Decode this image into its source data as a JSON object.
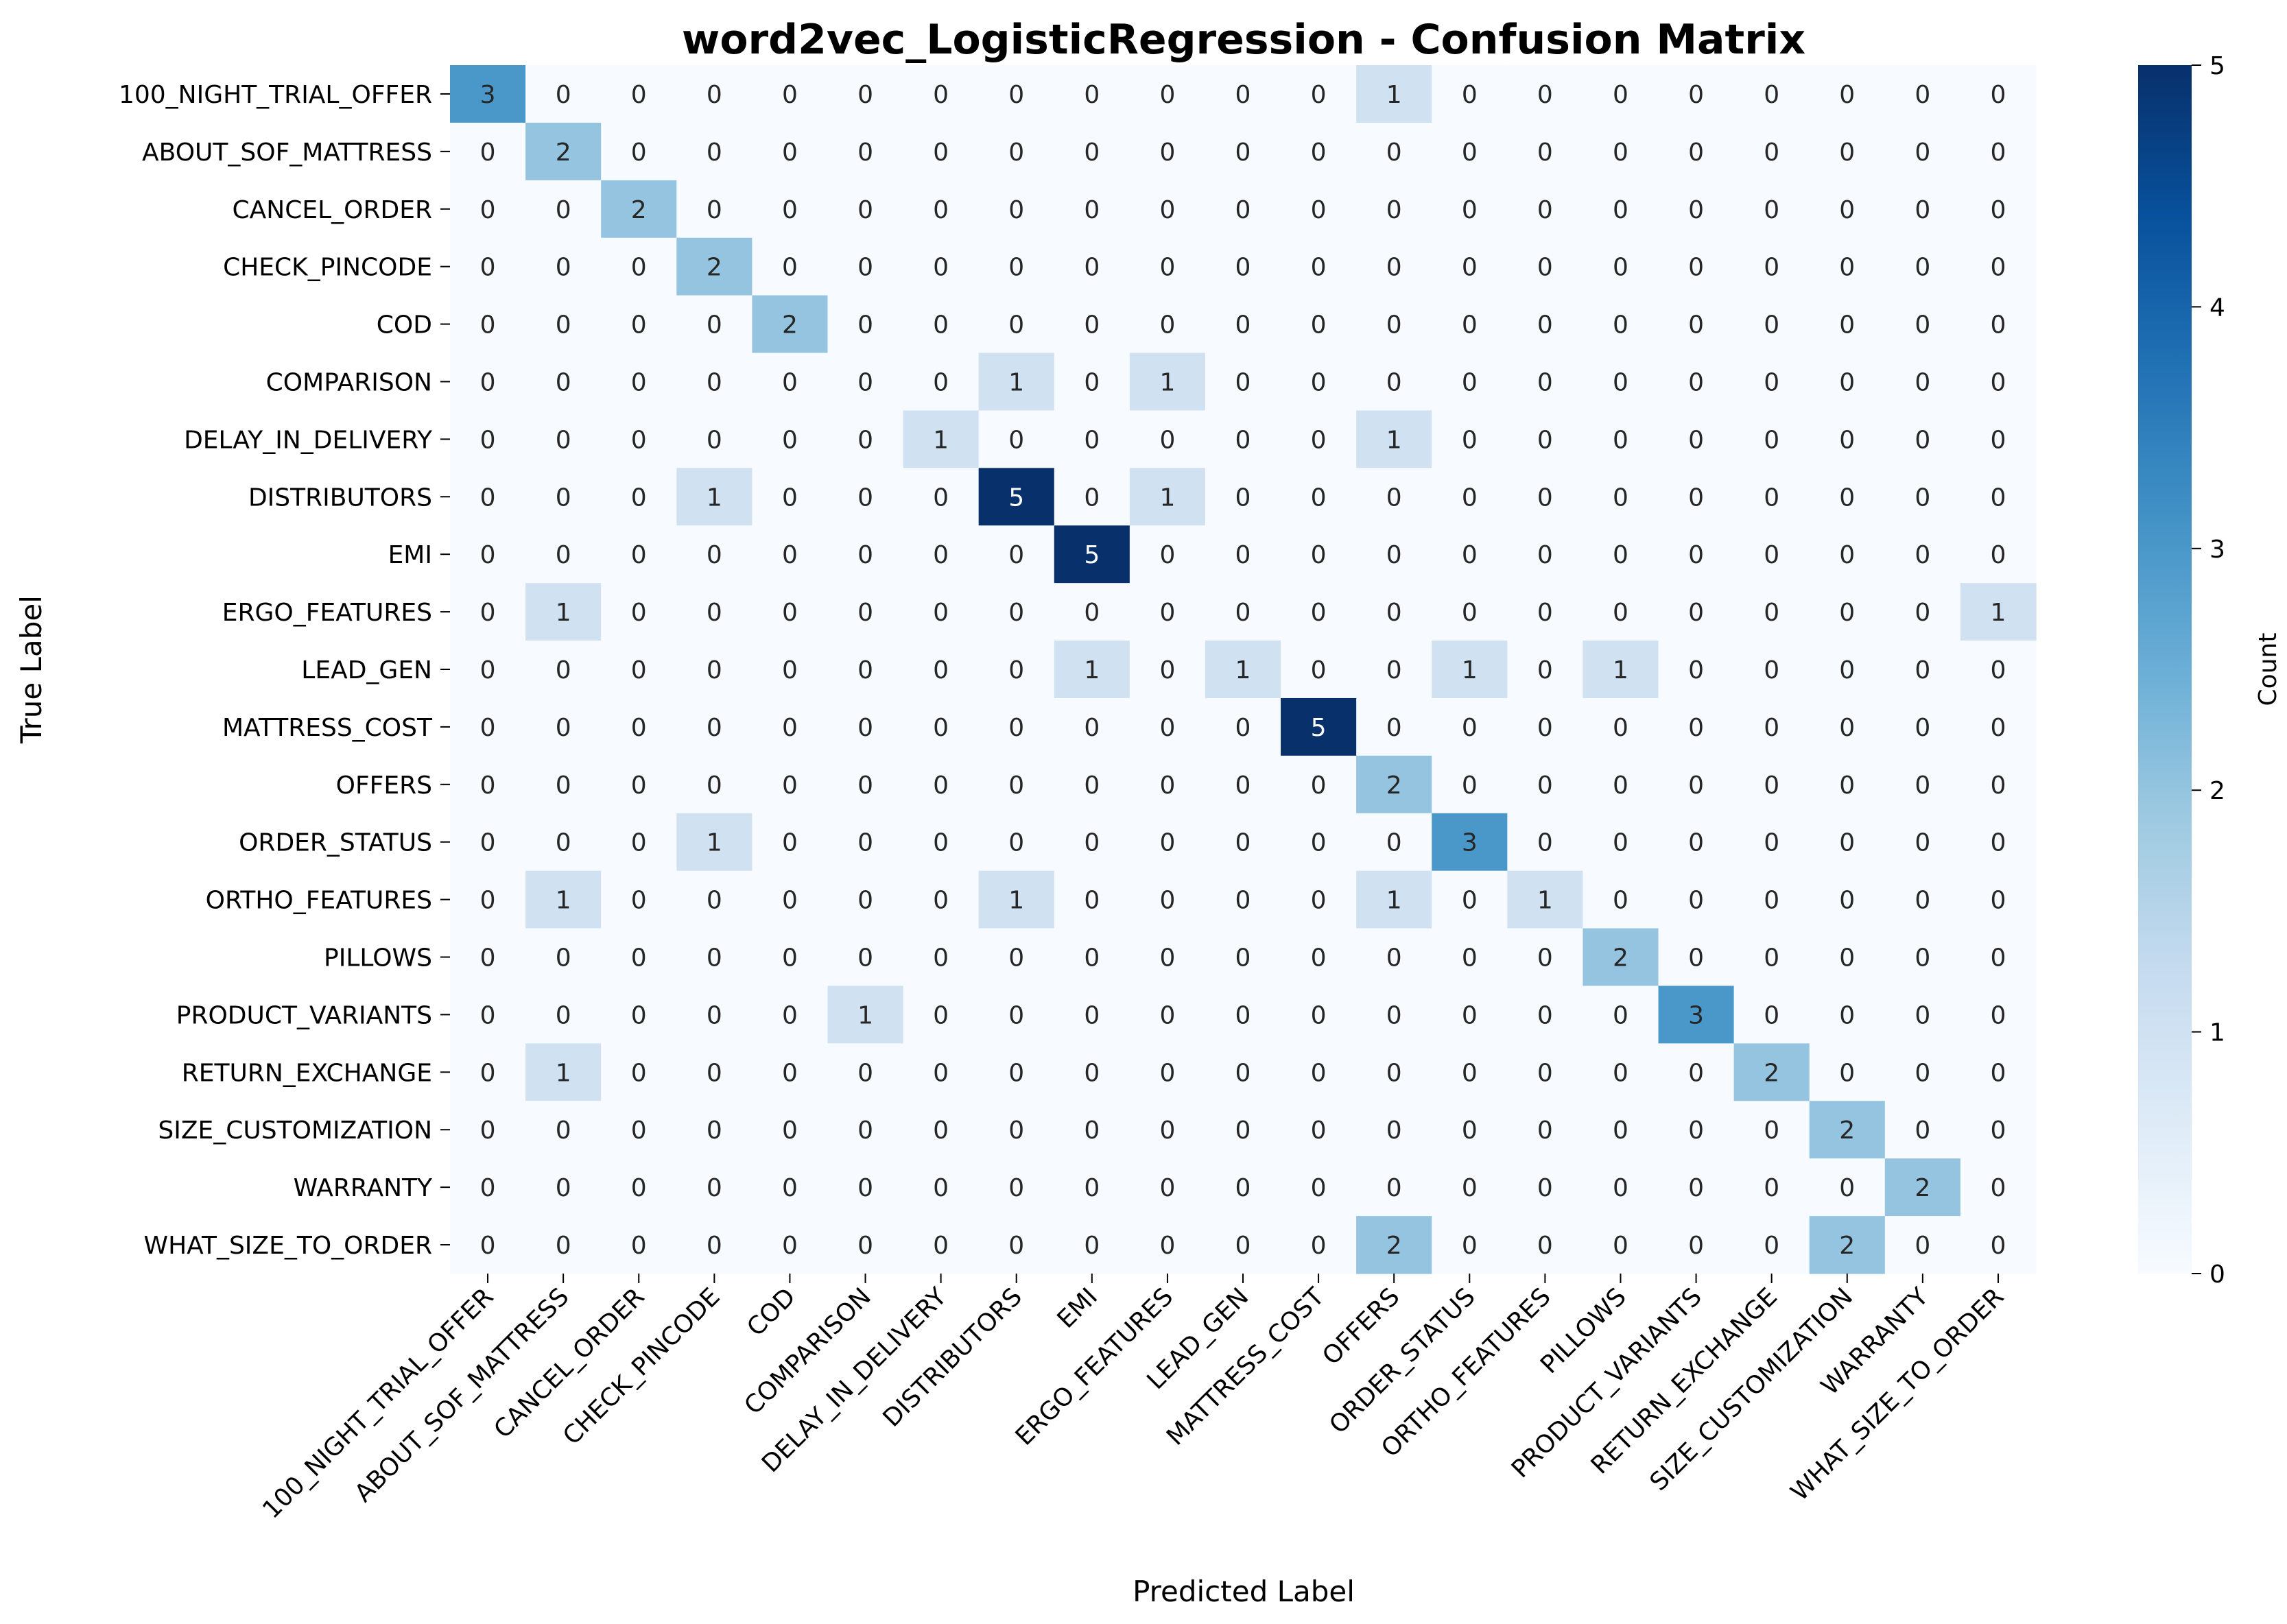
{
  "chart_data": {
    "type": "heatmap",
    "title": "word2vec_LogisticRegression - Confusion Matrix",
    "xlabel": "Predicted Label",
    "ylabel": "True Label",
    "labels": [
      "100_NIGHT_TRIAL_OFFER",
      "ABOUT_SOF_MATTRESS",
      "CANCEL_ORDER",
      "CHECK_PINCODE",
      "COD",
      "COMPARISON",
      "DELAY_IN_DELIVERY",
      "DISTRIBUTORS",
      "EMI",
      "ERGO_FEATURES",
      "LEAD_GEN",
      "MATTRESS_COST",
      "OFFERS",
      "ORDER_STATUS",
      "ORTHO_FEATURES",
      "PILLOWS",
      "PRODUCT_VARIANTS",
      "RETURN_EXCHANGE",
      "SIZE_CUSTOMIZATION",
      "WARRANTY",
      "WHAT_SIZE_TO_ORDER"
    ],
    "matrix": [
      [
        3,
        0,
        0,
        0,
        0,
        0,
        0,
        0,
        0,
        0,
        0,
        0,
        1,
        0,
        0,
        0,
        0,
        0,
        0,
        0,
        0
      ],
      [
        0,
        2,
        0,
        0,
        0,
        0,
        0,
        0,
        0,
        0,
        0,
        0,
        0,
        0,
        0,
        0,
        0,
        0,
        0,
        0,
        0
      ],
      [
        0,
        0,
        2,
        0,
        0,
        0,
        0,
        0,
        0,
        0,
        0,
        0,
        0,
        0,
        0,
        0,
        0,
        0,
        0,
        0,
        0
      ],
      [
        0,
        0,
        0,
        2,
        0,
        0,
        0,
        0,
        0,
        0,
        0,
        0,
        0,
        0,
        0,
        0,
        0,
        0,
        0,
        0,
        0
      ],
      [
        0,
        0,
        0,
        0,
        2,
        0,
        0,
        0,
        0,
        0,
        0,
        0,
        0,
        0,
        0,
        0,
        0,
        0,
        0,
        0,
        0
      ],
      [
        0,
        0,
        0,
        0,
        0,
        0,
        0,
        1,
        0,
        1,
        0,
        0,
        0,
        0,
        0,
        0,
        0,
        0,
        0,
        0,
        0
      ],
      [
        0,
        0,
        0,
        0,
        0,
        0,
        1,
        0,
        0,
        0,
        0,
        0,
        1,
        0,
        0,
        0,
        0,
        0,
        0,
        0,
        0
      ],
      [
        0,
        0,
        0,
        1,
        0,
        0,
        0,
        5,
        0,
        1,
        0,
        0,
        0,
        0,
        0,
        0,
        0,
        0,
        0,
        0,
        0
      ],
      [
        0,
        0,
        0,
        0,
        0,
        0,
        0,
        0,
        5,
        0,
        0,
        0,
        0,
        0,
        0,
        0,
        0,
        0,
        0,
        0,
        0
      ],
      [
        0,
        1,
        0,
        0,
        0,
        0,
        0,
        0,
        0,
        0,
        0,
        0,
        0,
        0,
        0,
        0,
        0,
        0,
        0,
        0,
        1
      ],
      [
        0,
        0,
        0,
        0,
        0,
        0,
        0,
        0,
        1,
        0,
        1,
        0,
        0,
        1,
        0,
        1,
        0,
        0,
        0,
        0,
        0
      ],
      [
        0,
        0,
        0,
        0,
        0,
        0,
        0,
        0,
        0,
        0,
        0,
        5,
        0,
        0,
        0,
        0,
        0,
        0,
        0,
        0,
        0
      ],
      [
        0,
        0,
        0,
        0,
        0,
        0,
        0,
        0,
        0,
        0,
        0,
        0,
        2,
        0,
        0,
        0,
        0,
        0,
        0,
        0,
        0
      ],
      [
        0,
        0,
        0,
        1,
        0,
        0,
        0,
        0,
        0,
        0,
        0,
        0,
        0,
        3,
        0,
        0,
        0,
        0,
        0,
        0,
        0
      ],
      [
        0,
        1,
        0,
        0,
        0,
        0,
        0,
        1,
        0,
        0,
        0,
        0,
        1,
        0,
        1,
        0,
        0,
        0,
        0,
        0,
        0
      ],
      [
        0,
        0,
        0,
        0,
        0,
        0,
        0,
        0,
        0,
        0,
        0,
        0,
        0,
        0,
        0,
        2,
        0,
        0,
        0,
        0,
        0
      ],
      [
        0,
        0,
        0,
        0,
        0,
        1,
        0,
        0,
        0,
        0,
        0,
        0,
        0,
        0,
        0,
        0,
        3,
        0,
        0,
        0,
        0
      ],
      [
        0,
        1,
        0,
        0,
        0,
        0,
        0,
        0,
        0,
        0,
        0,
        0,
        0,
        0,
        0,
        0,
        0,
        2,
        0,
        0,
        0
      ],
      [
        0,
        0,
        0,
        0,
        0,
        0,
        0,
        0,
        0,
        0,
        0,
        0,
        0,
        0,
        0,
        0,
        0,
        0,
        2,
        0,
        0
      ],
      [
        0,
        0,
        0,
        0,
        0,
        0,
        0,
        0,
        0,
        0,
        0,
        0,
        0,
        0,
        0,
        0,
        0,
        0,
        0,
        2,
        0
      ],
      [
        0,
        0,
        0,
        0,
        0,
        0,
        0,
        0,
        0,
        0,
        0,
        0,
        2,
        0,
        0,
        0,
        0,
        0,
        2,
        0,
        0
      ]
    ],
    "colorbar": {
      "label": "Count",
      "range": [
        0,
        5
      ],
      "ticks": [
        0,
        1,
        2,
        3,
        4,
        5
      ],
      "colormap": "Blues"
    },
    "grid": false
  }
}
